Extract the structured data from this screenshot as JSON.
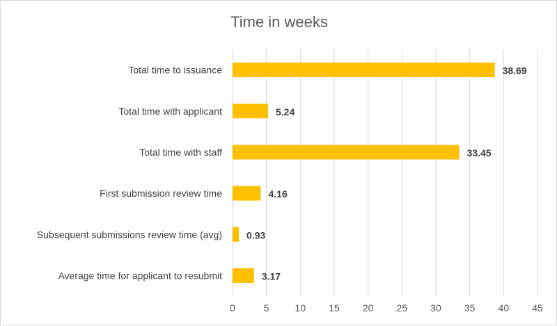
{
  "chart_data": {
    "type": "bar",
    "orientation": "horizontal",
    "title": "Time in weeks",
    "xlabel": "",
    "ylabel": "",
    "xlim": [
      0,
      45
    ],
    "ticks": [
      "0",
      "5",
      "10",
      "15",
      "20",
      "25",
      "30",
      "35",
      "40",
      "45"
    ],
    "tick_values": [
      0,
      5,
      10,
      15,
      20,
      25,
      30,
      35,
      40,
      45
    ],
    "grid": true,
    "legend": "none",
    "bar_color": "#FFC000",
    "categories": [
      "Total time to issuance",
      "Total time with applicant",
      "Total time with staff",
      "First submission review time",
      "Subsequent submissions review time (avg)",
      "Average time for applicant to resubmit"
    ],
    "values": [
      38.69,
      5.24,
      33.45,
      4.16,
      0.93,
      3.17
    ],
    "value_labels": [
      "38.69",
      "5.24",
      "33.45",
      "4.16",
      "0.93",
      "3.17"
    ]
  }
}
